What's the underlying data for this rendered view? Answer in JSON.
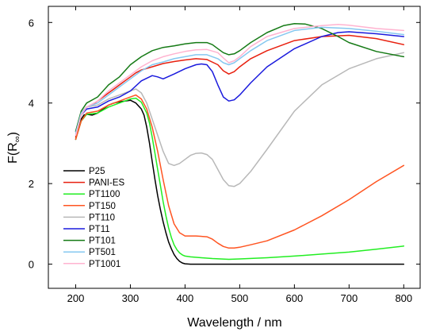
{
  "chart_data": {
    "type": "line",
    "title": "",
    "xlabel": "Wavelength / nm",
    "ylabel": "F(R∞)",
    "ylabel_main": "F(R",
    "ylabel_sub": "∞",
    "ylabel_close": ")",
    "xlim": [
      150,
      830
    ],
    "ylim": [
      -0.6,
      6.4
    ],
    "x_ticks": [
      200,
      300,
      400,
      500,
      600,
      700,
      800
    ],
    "x_tick_labels": [
      "200",
      "300",
      "400",
      "500",
      "600",
      "700",
      "800"
    ],
    "y_ticks": [
      0,
      2,
      4,
      6
    ],
    "y_tick_labels": [
      "0",
      "2",
      "4",
      "6"
    ],
    "grid": false,
    "legend_position": "lower-left",
    "series": [
      {
        "name": "P25",
        "color": "#000000",
        "x": [
          200,
          205,
          210,
          215,
          220,
          230,
          240,
          250,
          260,
          270,
          280,
          290,
          300,
          310,
          320,
          325,
          330,
          335,
          340,
          345,
          350,
          355,
          360,
          365,
          370,
          375,
          380,
          385,
          390,
          395,
          400,
          410,
          420,
          450,
          500,
          600,
          700,
          800
        ],
        "y": [
          3.1,
          3.4,
          3.6,
          3.7,
          3.72,
          3.7,
          3.75,
          3.85,
          3.95,
          4.0,
          4.03,
          4.05,
          4.07,
          4.0,
          3.85,
          3.7,
          3.4,
          3.0,
          2.55,
          2.1,
          1.7,
          1.35,
          1.05,
          0.78,
          0.55,
          0.38,
          0.24,
          0.14,
          0.07,
          0.03,
          0.01,
          0.0,
          0.0,
          0.0,
          0.0,
          0.0,
          0.0,
          0.0
        ]
      },
      {
        "name": "PANI-ES",
        "color": "#e8200f",
        "x": [
          200,
          205,
          210,
          220,
          230,
          240,
          250,
          260,
          270,
          280,
          290,
          300,
          310,
          320,
          340,
          360,
          380,
          400,
          420,
          440,
          460,
          470,
          480,
          490,
          500,
          520,
          550,
          600,
          650,
          700,
          750,
          800
        ],
        "y": [
          3.15,
          3.5,
          3.75,
          3.9,
          3.95,
          4.05,
          4.15,
          4.25,
          4.35,
          4.45,
          4.55,
          4.65,
          4.75,
          4.82,
          4.9,
          4.98,
          5.03,
          5.07,
          5.1,
          5.08,
          4.95,
          4.8,
          4.72,
          4.78,
          4.9,
          5.1,
          5.3,
          5.55,
          5.65,
          5.68,
          5.6,
          5.45
        ]
      },
      {
        "name": "PT1100",
        "color": "#22ee22",
        "x": [
          200,
          210,
          220,
          240,
          260,
          280,
          300,
          310,
          320,
          330,
          335,
          340,
          345,
          350,
          355,
          360,
          365,
          370,
          375,
          380,
          385,
          390,
          395,
          400,
          410,
          430,
          450,
          480,
          500,
          550,
          600,
          650,
          700,
          750,
          800
        ],
        "y": [
          3.1,
          3.55,
          3.72,
          3.75,
          3.9,
          4.0,
          4.1,
          4.12,
          4.02,
          3.75,
          3.5,
          3.15,
          2.75,
          2.35,
          1.95,
          1.55,
          1.2,
          0.9,
          0.66,
          0.48,
          0.36,
          0.28,
          0.23,
          0.2,
          0.18,
          0.16,
          0.14,
          0.12,
          0.13,
          0.16,
          0.2,
          0.25,
          0.3,
          0.37,
          0.45
        ]
      },
      {
        "name": "PT150",
        "color": "#ff5522",
        "x": [
          200,
          210,
          220,
          240,
          260,
          280,
          300,
          310,
          320,
          330,
          340,
          350,
          360,
          370,
          380,
          390,
          400,
          420,
          440,
          450,
          460,
          470,
          480,
          490,
          500,
          520,
          550,
          600,
          650,
          700,
          750,
          800
        ],
        "y": [
          3.1,
          3.55,
          3.75,
          3.8,
          3.95,
          4.05,
          4.15,
          4.2,
          4.1,
          3.85,
          3.4,
          2.8,
          2.1,
          1.45,
          1.0,
          0.78,
          0.7,
          0.7,
          0.68,
          0.62,
          0.52,
          0.44,
          0.4,
          0.4,
          0.42,
          0.48,
          0.58,
          0.85,
          1.2,
          1.6,
          2.05,
          2.45
        ]
      },
      {
        "name": "PT110",
        "color": "#b8b8b8",
        "x": [
          200,
          210,
          220,
          240,
          260,
          280,
          300,
          310,
          320,
          330,
          340,
          350,
          360,
          370,
          380,
          390,
          400,
          410,
          420,
          430,
          440,
          450,
          460,
          470,
          480,
          490,
          500,
          520,
          550,
          600,
          650,
          700,
          750,
          800
        ],
        "y": [
          3.2,
          3.7,
          3.9,
          3.95,
          4.1,
          4.2,
          4.3,
          4.35,
          4.25,
          4.0,
          3.6,
          3.2,
          2.8,
          2.5,
          2.45,
          2.5,
          2.6,
          2.7,
          2.75,
          2.76,
          2.72,
          2.6,
          2.35,
          2.1,
          1.95,
          1.93,
          2.0,
          2.3,
          2.85,
          3.8,
          4.45,
          4.85,
          5.1,
          5.25
        ]
      },
      {
        "name": "PT11",
        "color": "#1a1add",
        "x": [
          200,
          210,
          220,
          240,
          260,
          280,
          300,
          320,
          340,
          350,
          360,
          380,
          400,
          420,
          430,
          440,
          450,
          460,
          470,
          480,
          490,
          500,
          520,
          550,
          600,
          650,
          680,
          700,
          750,
          800
        ],
        "y": [
          3.3,
          3.7,
          3.85,
          3.9,
          4.05,
          4.15,
          4.3,
          4.55,
          4.68,
          4.65,
          4.6,
          4.72,
          4.85,
          4.95,
          4.97,
          4.95,
          4.78,
          4.45,
          4.15,
          4.05,
          4.08,
          4.2,
          4.5,
          4.9,
          5.35,
          5.65,
          5.75,
          5.77,
          5.72,
          5.65
        ]
      },
      {
        "name": "PT101",
        "color": "#157a15",
        "x": [
          200,
          210,
          220,
          240,
          260,
          280,
          300,
          320,
          340,
          360,
          380,
          400,
          420,
          440,
          450,
          460,
          470,
          480,
          490,
          500,
          520,
          550,
          580,
          600,
          620,
          650,
          680,
          700,
          750,
          800
        ],
        "y": [
          3.3,
          3.8,
          4.0,
          4.15,
          4.45,
          4.65,
          4.95,
          5.15,
          5.3,
          5.38,
          5.42,
          5.47,
          5.5,
          5.5,
          5.45,
          5.35,
          5.25,
          5.2,
          5.22,
          5.3,
          5.5,
          5.75,
          5.92,
          5.97,
          5.96,
          5.85,
          5.65,
          5.5,
          5.28,
          5.15
        ]
      },
      {
        "name": "PT501",
        "color": "#86c8f0",
        "x": [
          200,
          210,
          220,
          240,
          260,
          280,
          300,
          320,
          340,
          360,
          380,
          400,
          420,
          440,
          460,
          470,
          480,
          490,
          500,
          520,
          550,
          600,
          650,
          700,
          750,
          800
        ],
        "y": [
          3.25,
          3.75,
          3.9,
          4.0,
          4.2,
          4.4,
          4.6,
          4.8,
          4.95,
          5.02,
          5.1,
          5.15,
          5.2,
          5.2,
          5.1,
          5.0,
          4.95,
          5.0,
          5.1,
          5.3,
          5.55,
          5.8,
          5.88,
          5.85,
          5.78,
          5.7
        ]
      },
      {
        "name": "PT1001",
        "color": "#ffb3d0",
        "x": [
          200,
          210,
          220,
          240,
          260,
          280,
          300,
          320,
          340,
          360,
          380,
          400,
          420,
          440,
          460,
          470,
          480,
          490,
          500,
          520,
          550,
          600,
          650,
          680,
          700,
          750,
          800
        ],
        "y": [
          3.2,
          3.7,
          3.9,
          4.05,
          4.3,
          4.5,
          4.7,
          4.9,
          5.05,
          5.15,
          5.22,
          5.28,
          5.32,
          5.33,
          5.25,
          5.12,
          5.0,
          5.05,
          5.15,
          5.4,
          5.65,
          5.85,
          5.92,
          5.95,
          5.93,
          5.85,
          5.8
        ]
      }
    ]
  }
}
